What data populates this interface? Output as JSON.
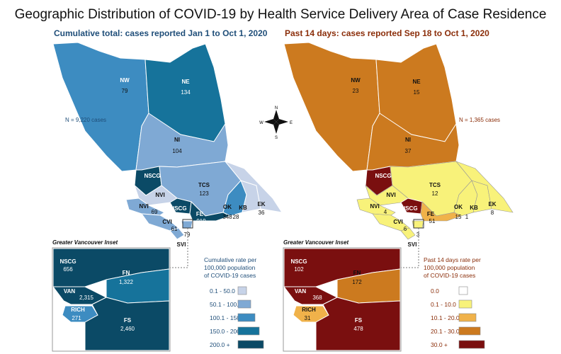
{
  "title": "Geographic Distribution of COVID-19 by Health Service Delivery Area of Case Residence",
  "left_map": {
    "subtitle": "Cumulative total: cases reported Jan 1 to Oct 1, 2020",
    "note": "N = 9,220 cases",
    "inset_title": "Greater Vancouver Inset",
    "legend_title": [
      "Cumulative rate per",
      "100,000 population",
      "of COVID-19 cases"
    ],
    "legend": [
      {
        "label": "0.1 - 50.0",
        "color": "#c7d3e8"
      },
      {
        "label": "50.1 - 100.0",
        "color": "#7fa9d4"
      },
      {
        "label": "100.1 - 150.0",
        "color": "#3d8cc1"
      },
      {
        "label": "150.0 - 200.0",
        "color": "#16739b"
      },
      {
        "label": "200.0 +",
        "color": "#0b4a66"
      }
    ],
    "regions": [
      {
        "name": "NW",
        "value": "79",
        "color": "#3d8cc1"
      },
      {
        "name": "NE",
        "value": "134",
        "color": "#16739b"
      },
      {
        "name": "NI",
        "value": "104",
        "color": "#7fa9d4"
      },
      {
        "name": "NSCG",
        "value": "",
        "color": "#0b4a66"
      },
      {
        "name": "TCS",
        "value": "123",
        "color": "#7fa9d4"
      },
      {
        "name": "NVI",
        "value": "",
        "color": "#c7d3e8"
      },
      {
        "name": "NVI",
        "value": "69",
        "color": "#7fa9d4"
      },
      {
        "name": "NSCG",
        "value": "",
        "color": "#0b4a66"
      },
      {
        "name": "OK",
        "value": "348",
        "color": "#3d8cc1"
      },
      {
        "name": "KB",
        "value": "28",
        "color": "#c7d3e8"
      },
      {
        "name": "EK",
        "value": "36",
        "color": "#c7d3e8"
      },
      {
        "name": "FE",
        "value": "919",
        "color": "#0b4a66"
      },
      {
        "name": "CVI",
        "value": "61",
        "color": "#7fa9d4"
      },
      {
        "name": "",
        "value": "79",
        "color": "#7fa9d4"
      },
      {
        "name": "SVI",
        "value": "",
        "color": "#7fa9d4"
      }
    ],
    "inset": [
      {
        "name": "NSCG",
        "value": "656"
      },
      {
        "name": "FN",
        "value": "1,322"
      },
      {
        "name": "VAN",
        "value": "2,315"
      },
      {
        "name": "RICH",
        "value": "271"
      },
      {
        "name": "FS",
        "value": "2,460"
      }
    ]
  },
  "right_map": {
    "subtitle": "Past 14 days: cases reported Sep 18 to Oct 1, 2020",
    "note": "N = 1,365 cases",
    "inset_title": "Greater Vancouver Inset",
    "legend_title": [
      "Past 14 days rate per",
      "100,000 population",
      "of COVID-19 cases"
    ],
    "legend": [
      {
        "label": "0.0",
        "color": "#ffffff"
      },
      {
        "label": "0.1 - 10.0",
        "color": "#f8f27a"
      },
      {
        "label": "10.1 - 20.0",
        "color": "#f0b24a"
      },
      {
        "label": "20.1 - 30.0",
        "color": "#cc7a1f"
      },
      {
        "label": "30.0 +",
        "color": "#7a0f0f"
      }
    ],
    "regions": [
      {
        "name": "NW",
        "value": "23",
        "color": "#cc7a1f"
      },
      {
        "name": "NE",
        "value": "15",
        "color": "#cc7a1f"
      },
      {
        "name": "NI",
        "value": "37",
        "color": "#cc7a1f"
      },
      {
        "name": "NSCG",
        "value": "",
        "color": "#7a0f0f"
      },
      {
        "name": "TCS",
        "value": "12",
        "color": "#f8f27a"
      },
      {
        "name": "NVI",
        "value": "",
        "color": "#f8f27a"
      },
      {
        "name": "NVI",
        "value": "4",
        "color": "#f8f27a"
      },
      {
        "name": "NSCG",
        "value": "",
        "color": "#7a0f0f"
      },
      {
        "name": "OK",
        "value": "15",
        "color": "#f8f27a"
      },
      {
        "name": "KB",
        "value": "1",
        "color": "#f8f27a"
      },
      {
        "name": "EK",
        "value": "8",
        "color": "#f8f27a"
      },
      {
        "name": "FE",
        "value": "51",
        "color": "#f0b24a"
      },
      {
        "name": "CVI",
        "value": "6",
        "color": "#f8f27a"
      },
      {
        "name": "",
        "value": "3",
        "color": "#f8f27a"
      },
      {
        "name": "SVI",
        "value": "",
        "color": "#f8f27a"
      }
    ],
    "inset": [
      {
        "name": "NSCG",
        "value": "102"
      },
      {
        "name": "FN",
        "value": "172"
      },
      {
        "name": "VAN",
        "value": "368"
      },
      {
        "name": "RICH",
        "value": "31"
      },
      {
        "name": "FS",
        "value": "478"
      }
    ]
  },
  "compass": {
    "n": "N",
    "s": "S",
    "e": "E",
    "w": "W"
  }
}
